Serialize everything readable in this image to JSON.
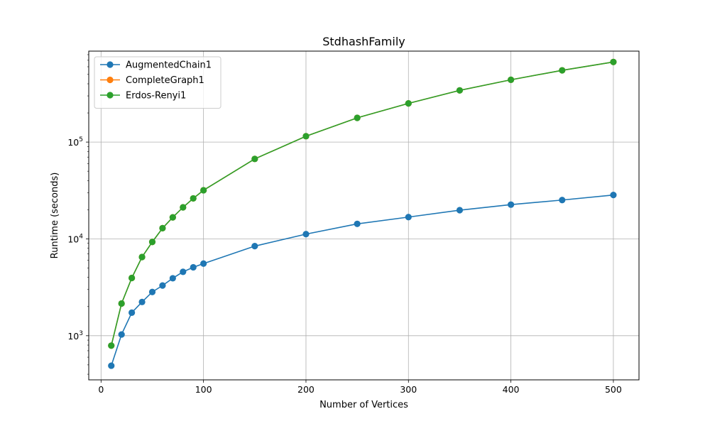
{
  "chart_data": {
    "type": "line",
    "title": "StdhashFamily",
    "xlabel": "Number of Vertices",
    "ylabel": "Runtime (seconds)",
    "xlim": [
      -12,
      525
    ],
    "ylim": [
      350,
      870000
    ],
    "yscale": "log",
    "grid": true,
    "legend_position": "top-left",
    "x_ticks": [
      0,
      100,
      200,
      300,
      400,
      500
    ],
    "x_tick_labels": [
      "0",
      "100",
      "200",
      "300",
      "400",
      "500"
    ],
    "y_ticks": [
      1000,
      10000,
      100000
    ],
    "y_tick_labels": [
      {
        "base": "10",
        "exp": "3"
      },
      {
        "base": "10",
        "exp": "4"
      },
      {
        "base": "10",
        "exp": "5"
      }
    ],
    "x": [
      10,
      20,
      30,
      40,
      50,
      60,
      70,
      80,
      90,
      100,
      150,
      200,
      250,
      300,
      350,
      400,
      450,
      500
    ],
    "series": [
      {
        "name": "AugmentedChain1",
        "color": "#1f77b4",
        "values": [
          490,
          1030,
          1730,
          2230,
          2830,
          3300,
          3920,
          4570,
          5090,
          5560,
          8420,
          11200,
          14300,
          16800,
          19800,
          22600,
          25200,
          28400
        ]
      },
      {
        "name": "CompleteGraph1",
        "color": "#ff7f0e",
        "values": [
          790,
          2150,
          3950,
          6500,
          9300,
          12900,
          16700,
          21200,
          26200,
          31800,
          67000,
          115000,
          178000,
          251000,
          342000,
          440000,
          551000,
          672000
        ]
      },
      {
        "name": "Erdos-Renyi1",
        "color": "#2ca02c",
        "values": [
          790,
          2150,
          3950,
          6500,
          9300,
          12900,
          16700,
          21200,
          26200,
          31800,
          67000,
          115000,
          178000,
          251000,
          342000,
          440000,
          551000,
          672000
        ]
      }
    ]
  }
}
